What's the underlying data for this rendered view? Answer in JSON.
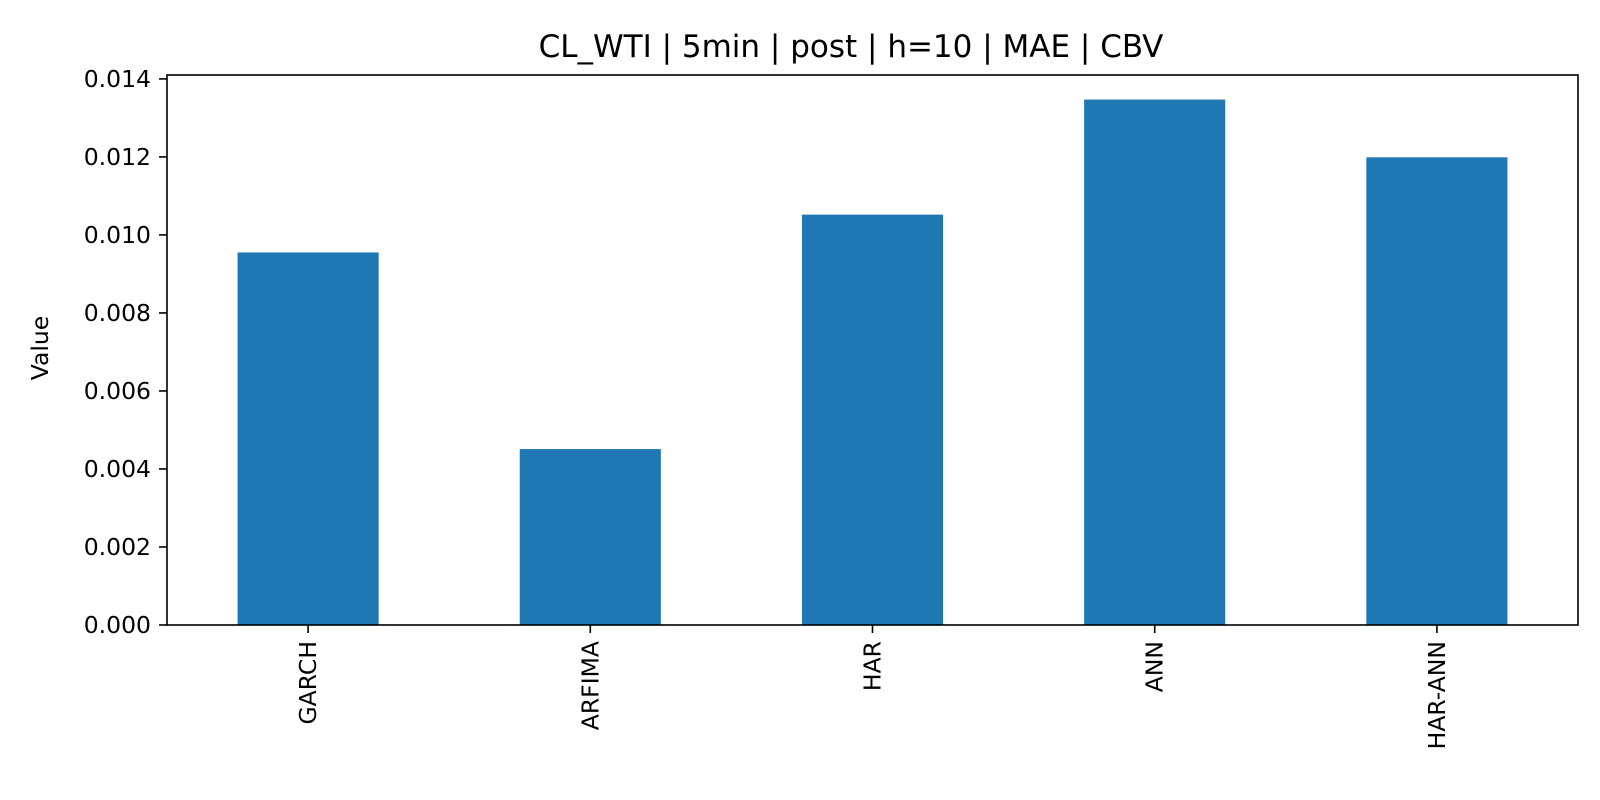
{
  "chart_data": {
    "type": "bar",
    "title": "CL_WTI | 5min | post | h=10 | MAE | CBV",
    "xlabel": "",
    "ylabel": "Value",
    "categories": [
      "GARCH",
      "ARFIMA",
      "HAR",
      "ANN",
      "HAR-ANN"
    ],
    "values": [
      0.00955,
      0.00451,
      0.01052,
      0.01347,
      0.01199
    ],
    "ylim": [
      0,
      0.0141
    ],
    "yticks": [
      0.0,
      0.002,
      0.004,
      0.006,
      0.008,
      0.01,
      0.012,
      0.014
    ],
    "ytick_labels": [
      "0.000",
      "0.002",
      "0.004",
      "0.006",
      "0.008",
      "0.010",
      "0.012",
      "0.014"
    ],
    "bar_color": "#1f77b4",
    "grid": false,
    "legend": "none"
  }
}
